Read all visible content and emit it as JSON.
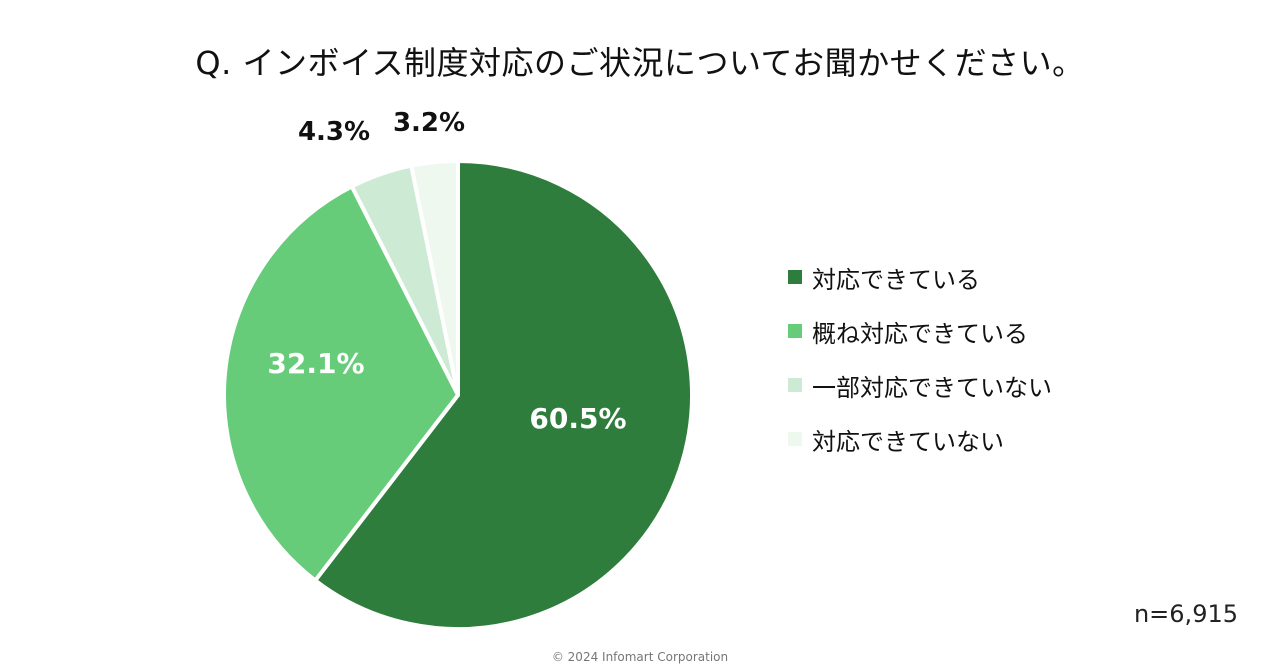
{
  "chart_data": {
    "type": "pie",
    "title": "Q. インボイス制度対応のご状況についてお聞かせください。",
    "categories": [
      "対応できている",
      "概ね対応できている",
      "一部対応できていない",
      "対応できていない"
    ],
    "values": [
      60.5,
      32.1,
      4.3,
      3.2
    ],
    "value_labels": [
      "60.5%",
      "32.1%",
      "4.3%",
      "3.2%"
    ],
    "colors": [
      "#2e7d3c",
      "#66cc7a",
      "#cdebd4",
      "#eef8ef"
    ],
    "label_colors": [
      "#ffffff",
      "#ffffff",
      "#111111",
      "#111111"
    ],
    "start": "12 o'clock",
    "direction": "clockwise",
    "legend_position": "right"
  },
  "footer": {
    "sample_size": "n=6,915",
    "copyright": "© 2024 Infomart Corporation"
  }
}
